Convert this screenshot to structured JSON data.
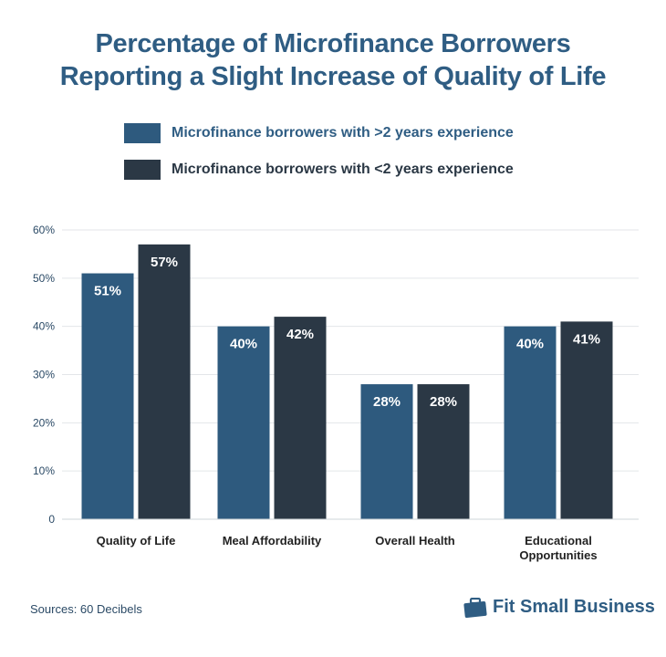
{
  "title_lines": [
    "Percentage of Microfinance Borrowers",
    "Reporting a Slight Increase of Quality of Life"
  ],
  "source": "Sources: 60 Decibels",
  "brand": {
    "name": "Fit Small Business",
    "icon": "briefcase-icon"
  },
  "colors": {
    "title": "#2f5d83",
    "series1": "#2e5a7e",
    "series2": "#2b3845",
    "grid": "#e3e6e9",
    "axis_text": "#2b4a66"
  },
  "chart_data": {
    "type": "bar",
    "categories": [
      "Quality of Life",
      "Meal Affordability",
      "Overall Health",
      "Educational Opportunities"
    ],
    "series": [
      {
        "name": "Microfinance borrowers with >2 years experience",
        "values": [
          51,
          40,
          28,
          40
        ],
        "labels": [
          "51%",
          "40%",
          "28%",
          "40%"
        ]
      },
      {
        "name": "Microfinance borrowers with <2 years experience",
        "values": [
          57,
          42,
          28,
          41
        ],
        "labels": [
          "57%",
          "42%",
          "28%",
          "41%"
        ]
      }
    ],
    "ylim": [
      0,
      60
    ],
    "yticks": [
      0,
      10,
      20,
      30,
      40,
      50,
      60
    ],
    "ytick_labels": [
      "0",
      "10%",
      "20%",
      "30%",
      "40%",
      "50%",
      "60%"
    ],
    "grid": true,
    "legend": "top"
  }
}
